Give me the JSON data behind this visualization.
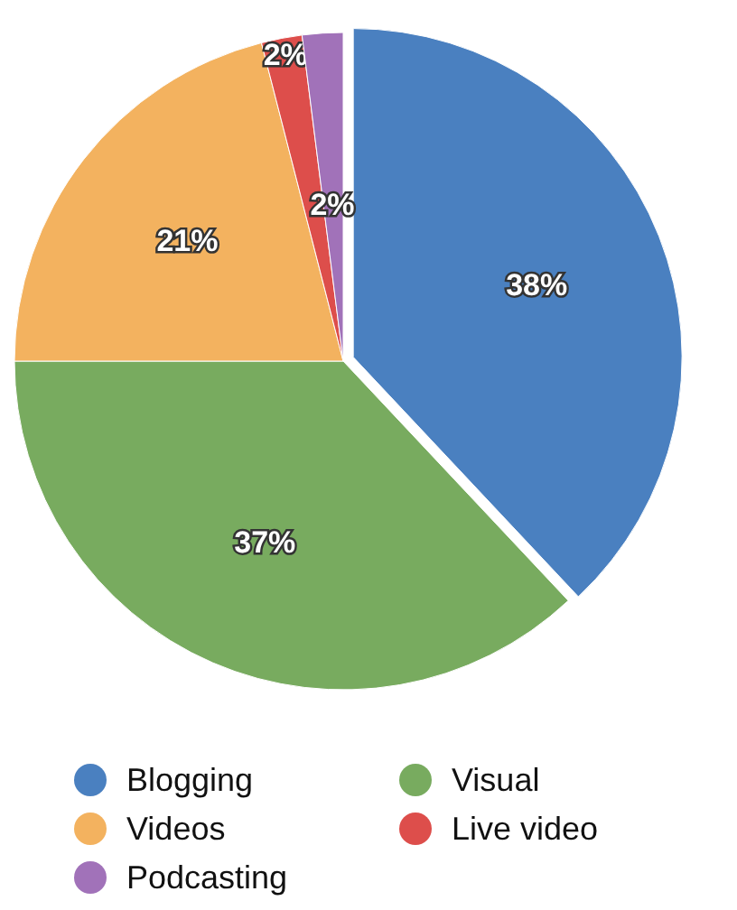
{
  "chart_data": {
    "type": "pie",
    "categories": [
      "Blogging",
      "Visual",
      "Videos",
      "Live video",
      "Podcasting"
    ],
    "values": [
      38,
      37,
      21,
      2,
      2
    ],
    "colors": [
      "#4a80c0",
      "#78ab5f",
      "#f3b25f",
      "#dd4e4b",
      "#a172b9"
    ],
    "value_labels": [
      "38%",
      "37%",
      "21%",
      "2%",
      "2%"
    ],
    "legend": "bottom"
  }
}
